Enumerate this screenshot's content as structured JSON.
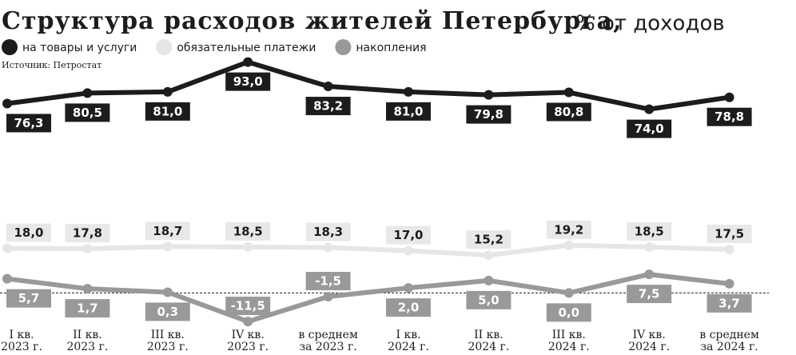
{
  "chart_data": {
    "type": "line",
    "title": "Структура расходов жителей Петербурга,",
    "subtitle": "% от доходов",
    "source": "Источник: Петростат",
    "categories": [
      [
        "I кв.",
        "2023 г."
      ],
      [
        "II кв.",
        "2023 г."
      ],
      [
        "III кв.",
        "2023 г."
      ],
      [
        "IV кв.",
        "2023 г."
      ],
      [
        "в среднем",
        "за 2023 г."
      ],
      [
        "I кв.",
        "2024 г."
      ],
      [
        "II кв.",
        "2024 г."
      ],
      [
        "III кв.",
        "2024 г."
      ],
      [
        "IV кв.",
        "2024 г."
      ],
      [
        "в среднем",
        "за 2024 г."
      ]
    ],
    "series": [
      {
        "name": "на товары и услуги",
        "color": "#1c1c1c",
        "values": [
          76.3,
          80.5,
          81.0,
          93.0,
          83.2,
          81.0,
          79.8,
          80.8,
          74.0,
          78.8
        ],
        "value_labels": [
          "76,3",
          "80,5",
          "81,0",
          "93,0",
          "83,2",
          "81,0",
          "79,8",
          "80,8",
          "74,0",
          "78,8"
        ]
      },
      {
        "name": "обязательные платежи",
        "color": "#e6e6e6",
        "values": [
          18.0,
          17.8,
          18.7,
          18.5,
          18.3,
          17.0,
          15.2,
          19.2,
          18.5,
          17.5
        ],
        "value_labels": [
          "18,0",
          "17,8",
          "18,7",
          "18,5",
          "18,3",
          "17,0",
          "15,2",
          "19,2",
          "18,5",
          "17,5"
        ]
      },
      {
        "name": "накопления",
        "color": "#999999",
        "values": [
          5.7,
          1.7,
          0.3,
          -11.5,
          -1.5,
          2.0,
          5.0,
          0.0,
          7.5,
          3.7
        ],
        "value_labels": [
          "5,7",
          "1,7",
          "0,3",
          "-11,5",
          "-1,5",
          "2,0",
          "5,0",
          "0,0",
          "7,5",
          "3,7"
        ]
      }
    ],
    "ylim": [
      -25,
      118
    ]
  }
}
